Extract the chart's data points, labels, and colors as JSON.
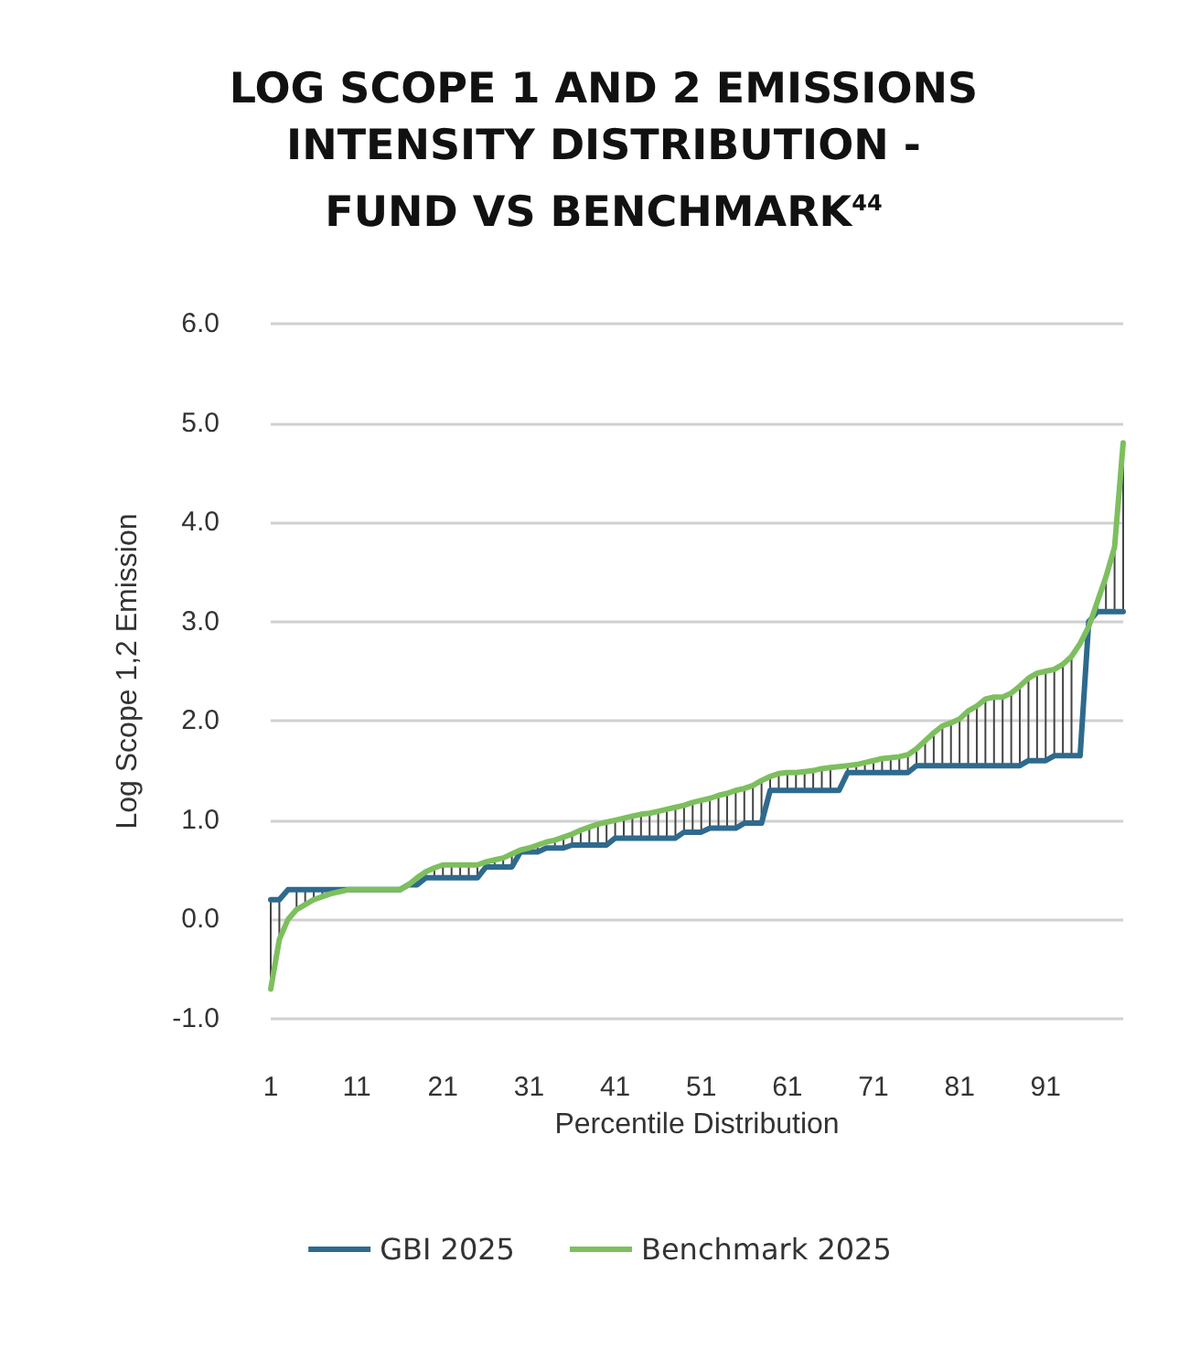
{
  "chart_data": {
    "type": "line",
    "title": "LOG SCOPE 1 AND 2 EMISSIONS INTENSITY DISTRIBUTION - FUND VS BENCHMARK$^{44}$",
    "xlabel": "Percentile Distribution",
    "ylabel": "Log Scope 1,2 Emission",
    "categories": [
      "1",
      null,
      null,
      null,
      null,
      null,
      null,
      null,
      null,
      null,
      "11",
      null,
      null,
      null,
      null,
      null,
      null,
      null,
      null,
      null,
      "21",
      null,
      null,
      null,
      null,
      null,
      null,
      null,
      null,
      null,
      "31",
      null,
      null,
      null,
      null,
      null,
      null,
      null,
      null,
      null,
      "41",
      null,
      null,
      null,
      null,
      null,
      null,
      null,
      null,
      null,
      "51",
      null,
      null,
      null,
      null,
      null,
      null,
      null,
      null,
      null,
      "61",
      null,
      null,
      null,
      null,
      null,
      null,
      null,
      null,
      null,
      "71",
      null,
      null,
      null,
      null,
      null,
      null,
      null,
      null,
      null,
      "81",
      null,
      null,
      null,
      null,
      null,
      null,
      null,
      null,
      null,
      "91",
      null,
      null,
      null,
      null,
      null,
      null,
      null,
      null,
      null
    ],
    "series": [
      {
        "name": "GBI 2025",
        "color": "#2e6a8e",
        "values": [
          0.2,
          0.2,
          0.3,
          0.3,
          0.3,
          0.3,
          0.3,
          0.3,
          0.3,
          0.3,
          0.3,
          0.3,
          0.3,
          0.3,
          0.3,
          0.3,
          0.35,
          0.35,
          0.42,
          0.42,
          0.42,
          0.42,
          0.42,
          0.42,
          0.42,
          0.53,
          0.53,
          0.53,
          0.53,
          0.68,
          0.68,
          0.68,
          0.72,
          0.72,
          0.72,
          0.75,
          0.75,
          0.75,
          0.75,
          0.75,
          0.82,
          0.82,
          0.82,
          0.82,
          0.82,
          0.82,
          0.82,
          0.82,
          0.88,
          0.88,
          0.88,
          0.92,
          0.92,
          0.92,
          0.92,
          0.97,
          0.97,
          0.97,
          1.3,
          1.3,
          1.3,
          1.3,
          1.3,
          1.3,
          1.3,
          1.3,
          1.3,
          1.48,
          1.48,
          1.48,
          1.48,
          1.48,
          1.48,
          1.48,
          1.48,
          1.55,
          1.55,
          1.55,
          1.55,
          1.55,
          1.55,
          1.55,
          1.55,
          1.55,
          1.55,
          1.55,
          1.55,
          1.55,
          1.6,
          1.6,
          1.6,
          1.65,
          1.65,
          1.65,
          1.65,
          3.0,
          3.1,
          3.1,
          3.1,
          3.1
        ]
      },
      {
        "name": "Benchmark 2025",
        "color": "#7dbf5e",
        "values": [
          -0.7,
          -0.2,
          0.0,
          0.1,
          0.15,
          0.2,
          0.23,
          0.26,
          0.28,
          0.3,
          0.3,
          0.3,
          0.3,
          0.3,
          0.3,
          0.3,
          0.35,
          0.42,
          0.48,
          0.52,
          0.55,
          0.55,
          0.55,
          0.55,
          0.55,
          0.58,
          0.6,
          0.62,
          0.66,
          0.7,
          0.72,
          0.75,
          0.78,
          0.8,
          0.83,
          0.86,
          0.9,
          0.93,
          0.96,
          0.98,
          1.0,
          1.02,
          1.04,
          1.06,
          1.07,
          1.09,
          1.11,
          1.13,
          1.15,
          1.18,
          1.2,
          1.22,
          1.25,
          1.27,
          1.3,
          1.32,
          1.35,
          1.4,
          1.44,
          1.47,
          1.48,
          1.48,
          1.49,
          1.5,
          1.52,
          1.53,
          1.54,
          1.55,
          1.56,
          1.58,
          1.6,
          1.62,
          1.63,
          1.64,
          1.66,
          1.72,
          1.8,
          1.88,
          1.95,
          1.98,
          2.02,
          2.1,
          2.15,
          2.22,
          2.24,
          2.24,
          2.28,
          2.35,
          2.43,
          2.48,
          2.5,
          2.52,
          2.57,
          2.65,
          2.78,
          2.95,
          3.2,
          3.45,
          3.75,
          4.8
        ],
        "errors": [
          [
            -0.7,
            0.2
          ],
          [
            -0.2,
            0.2
          ],
          null,
          [
            0.1,
            0.3
          ],
          [
            0.15,
            0.3
          ],
          [
            0.2,
            0.3
          ],
          [
            0.23,
            0.3
          ],
          null,
          [
            0.28,
            0.3
          ],
          null,
          null,
          null,
          null,
          null,
          null,
          null,
          null,
          null,
          [
            0.42,
            0.48
          ],
          [
            0.42,
            0.52
          ],
          [
            0.42,
            0.55
          ],
          [
            0.42,
            0.55
          ],
          [
            0.42,
            0.55
          ],
          [
            0.42,
            0.55
          ],
          [
            0.42,
            0.55
          ],
          null,
          [
            0.53,
            0.6
          ],
          [
            0.53,
            0.62
          ],
          [
            0.53,
            0.66
          ],
          [
            0.68,
            0.7
          ],
          null,
          [
            0.68,
            0.75
          ],
          null,
          [
            0.72,
            0.8
          ],
          [
            0.72,
            0.83
          ],
          [
            0.75,
            0.86
          ],
          [
            0.75,
            0.9
          ],
          [
            0.75,
            0.93
          ],
          [
            0.75,
            0.96
          ],
          [
            0.75,
            0.98
          ],
          [
            0.82,
            1.0
          ],
          [
            0.82,
            1.02
          ],
          [
            0.82,
            1.04
          ],
          [
            0.82,
            1.06
          ],
          [
            0.82,
            1.07
          ],
          [
            0.82,
            1.09
          ],
          [
            0.82,
            1.11
          ],
          [
            0.82,
            1.13
          ],
          [
            0.88,
            1.15
          ],
          [
            0.88,
            1.18
          ],
          [
            0.88,
            1.2
          ],
          [
            0.92,
            1.22
          ],
          [
            0.92,
            1.25
          ],
          [
            0.92,
            1.27
          ],
          [
            0.92,
            1.3
          ],
          [
            0.97,
            1.32
          ],
          [
            0.97,
            1.35
          ],
          [
            0.97,
            1.4
          ],
          [
            1.3,
            1.44
          ],
          [
            1.3,
            1.47
          ],
          [
            1.3,
            1.48
          ],
          [
            1.3,
            1.48
          ],
          [
            1.3,
            1.49
          ],
          [
            1.3,
            1.5
          ],
          [
            1.3,
            1.52
          ],
          [
            1.3,
            1.53
          ],
          null,
          [
            1.48,
            1.55
          ],
          [
            1.48,
            1.56
          ],
          [
            1.48,
            1.58
          ],
          [
            1.48,
            1.6
          ],
          [
            1.48,
            1.62
          ],
          [
            1.48,
            1.63
          ],
          [
            1.48,
            1.64
          ],
          [
            1.48,
            1.66
          ],
          [
            1.55,
            1.72
          ],
          [
            1.55,
            1.8
          ],
          [
            1.55,
            1.88
          ],
          [
            1.55,
            1.95
          ],
          [
            1.55,
            1.98
          ],
          [
            1.55,
            2.02
          ],
          [
            1.55,
            2.1
          ],
          [
            1.55,
            2.15
          ],
          [
            1.55,
            2.22
          ],
          [
            1.55,
            2.24
          ],
          [
            1.55,
            2.24
          ],
          [
            1.55,
            2.28
          ],
          [
            1.55,
            2.35
          ],
          [
            1.6,
            2.43
          ],
          [
            1.6,
            2.48
          ],
          [
            1.6,
            2.5
          ],
          [
            1.65,
            2.52
          ],
          [
            1.65,
            2.57
          ],
          [
            1.65,
            2.65
          ],
          null,
          null,
          [
            3.1,
            3.2
          ],
          [
            3.1,
            3.45
          ],
          [
            3.1,
            3.75
          ],
          [
            3.1,
            4.8
          ]
        ]
      }
    ],
    "ylim": [
      -1,
      6
    ],
    "yticks": [
      {
        "value": -1,
        "label": "-1.0"
      },
      {
        "value": 0,
        "label": "0.0"
      },
      {
        "value": 1,
        "label": "1.0"
      },
      {
        "value": 2,
        "label": "2.0"
      },
      {
        "value": 3,
        "label": "3.0"
      },
      {
        "value": 4,
        "label": "4.0"
      },
      {
        "value": 5,
        "label": "5.0"
      },
      {
        "value": 6,
        "label": "6.0"
      }
    ],
    "grid": "y",
    "legend": "bottom",
    "marker": "none",
    "line_style": "solid"
  }
}
